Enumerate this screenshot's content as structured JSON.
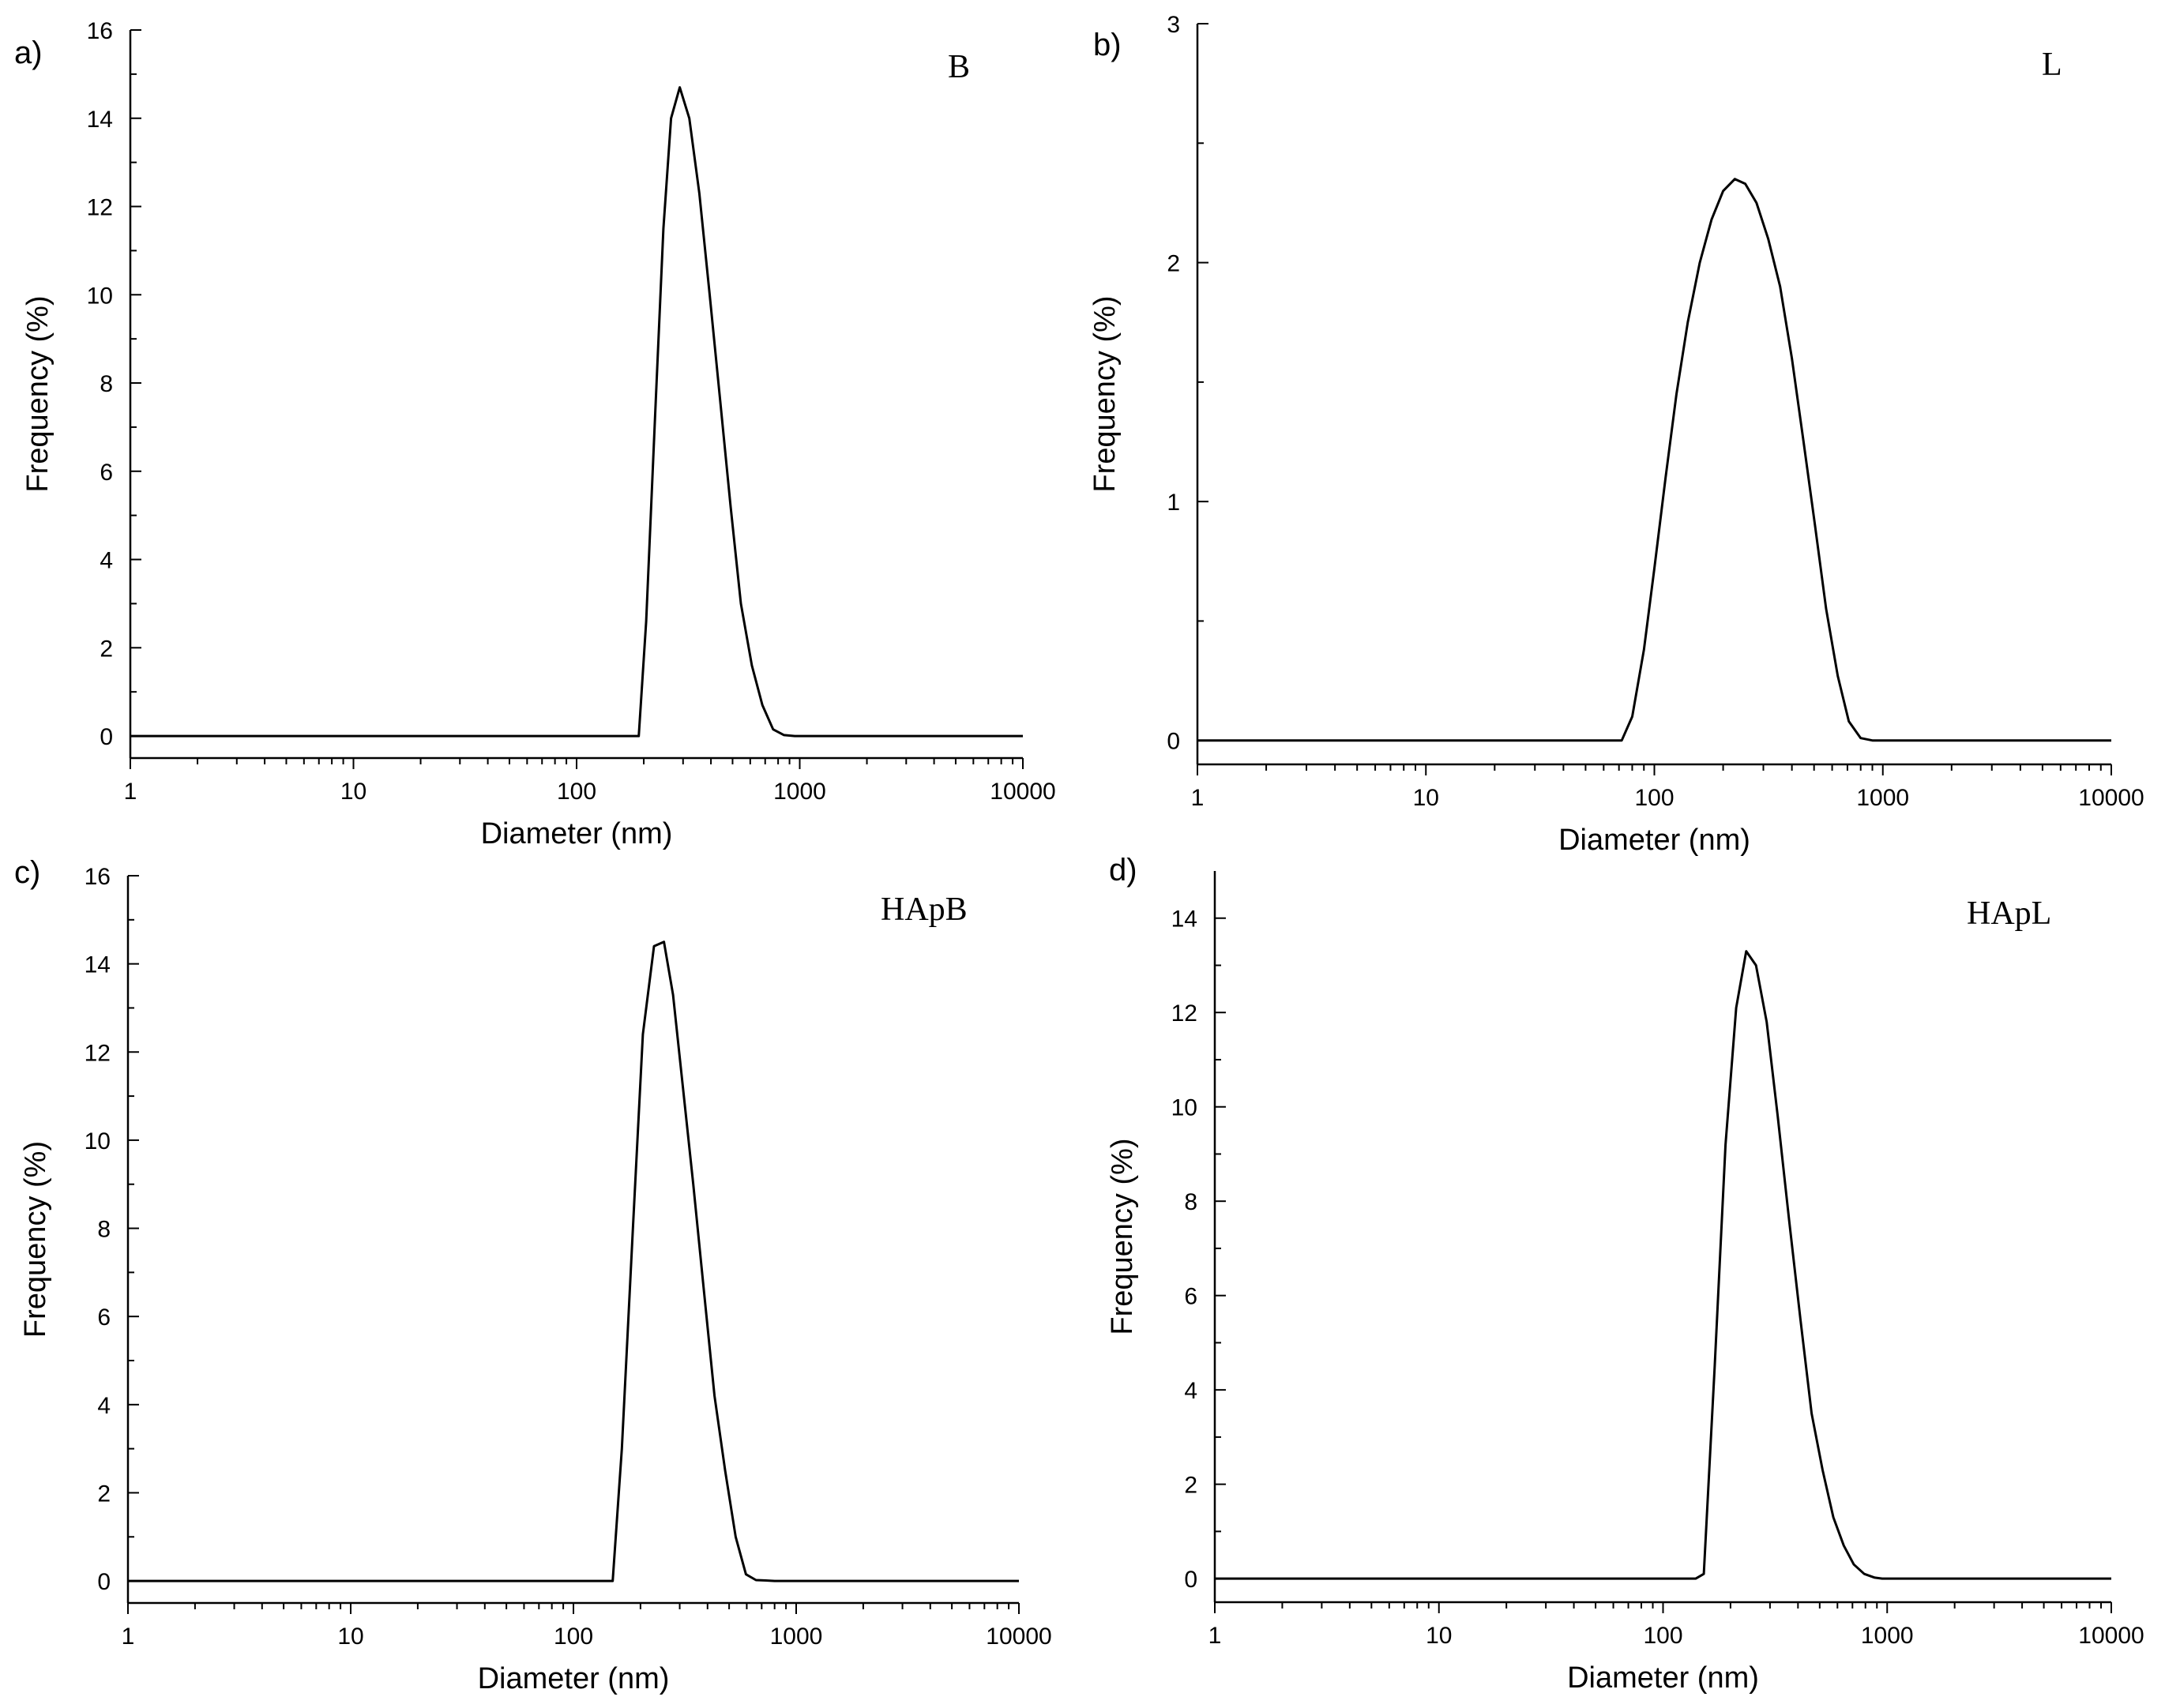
{
  "chart_data": [
    {
      "type": "line",
      "panel_label": "a)",
      "sample_label": "B",
      "xlabel": "Diameter (nm)",
      "ylabel": "Frequency (%)",
      "xscale": "log",
      "xlim": [
        1,
        10000
      ],
      "ylim": [
        -0.5,
        16
      ],
      "x_ticks": [
        1,
        10,
        100,
        1000,
        10000
      ],
      "x_tick_labels": [
        "1",
        "10",
        "100",
        "1000",
        "10000"
      ],
      "y_ticks": [
        0,
        2,
        4,
        6,
        8,
        10,
        12,
        14,
        16
      ],
      "y_tick_labels": [
        "0",
        "2",
        "4",
        "6",
        "8",
        "10",
        "12",
        "14",
        "16"
      ],
      "y_minor_step": 1,
      "x": [
        1,
        190,
        205,
        225,
        245,
        265,
        290,
        320,
        355,
        395,
        440,
        490,
        545,
        610,
        680,
        760,
        850,
        950,
        10000
      ],
      "y": [
        0,
        0,
        2.6,
        7.3,
        11.5,
        14.0,
        14.7,
        14.0,
        12.3,
        10.0,
        7.6,
        5.2,
        3.0,
        1.6,
        0.7,
        0.15,
        0.02,
        0,
        0
      ]
    },
    {
      "type": "line",
      "panel_label": "b)",
      "sample_label": "L",
      "xlabel": "Diameter (nm)",
      "ylabel": "Frequency (%)",
      "xscale": "log",
      "xlim": [
        1,
        10000
      ],
      "ylim": [
        -0.1,
        3
      ],
      "x_ticks": [
        1,
        10,
        100,
        1000,
        10000
      ],
      "x_tick_labels": [
        "1",
        "10",
        "100",
        "1000",
        "10000"
      ],
      "y_ticks": [
        0,
        1,
        2,
        3
      ],
      "y_tick_labels": [
        "0",
        "1",
        "2",
        "3"
      ],
      "y_minor_step": 0.5,
      "x": [
        1,
        72,
        80,
        90,
        100,
        112,
        125,
        140,
        158,
        178,
        200,
        225,
        250,
        280,
        315,
        355,
        400,
        450,
        505,
        565,
        635,
        710,
        800,
        900,
        10000
      ],
      "y": [
        0,
        0,
        0.1,
        0.38,
        0.72,
        1.1,
        1.45,
        1.75,
        2.0,
        2.18,
        2.3,
        2.35,
        2.33,
        2.25,
        2.1,
        1.9,
        1.6,
        1.25,
        0.9,
        0.55,
        0.27,
        0.08,
        0.01,
        0,
        0
      ]
    },
    {
      "type": "line",
      "panel_label": "c)",
      "sample_label": "HApB",
      "xlabel": "Diameter (nm)",
      "ylabel": "Frequency (%)",
      "xscale": "log",
      "xlim": [
        1,
        10000
      ],
      "ylim": [
        -0.5,
        16
      ],
      "x_ticks": [
        1,
        10,
        100,
        1000,
        10000
      ],
      "x_tick_labels": [
        "1",
        "10",
        "100",
        "1000",
        "10000"
      ],
      "y_ticks": [
        0,
        2,
        4,
        6,
        8,
        10,
        12,
        14,
        16
      ],
      "y_tick_labels": [
        "0",
        "2",
        "4",
        "6",
        "8",
        "10",
        "12",
        "14",
        "16"
      ],
      "y_minor_step": 1,
      "x": [
        1,
        150,
        165,
        185,
        205,
        230,
        255,
        280,
        310,
        345,
        385,
        430,
        480,
        535,
        595,
        660,
        730,
        800,
        880,
        10000
      ],
      "y": [
        0,
        0,
        3.0,
        8.0,
        12.4,
        14.4,
        14.5,
        13.3,
        11.2,
        9.0,
        6.6,
        4.2,
        2.5,
        1.0,
        0.15,
        0.02,
        0.01,
        0,
        0,
        0
      ]
    },
    {
      "type": "line",
      "panel_label": "d)",
      "sample_label": "HApL",
      "xlabel": "Diameter (nm)",
      "ylabel": "Frequency (%)",
      "xscale": "log",
      "xlim": [
        1,
        10000
      ],
      "ylim": [
        -0.5,
        15
      ],
      "x_ticks": [
        1,
        10,
        100,
        1000,
        10000
      ],
      "x_tick_labels": [
        "1",
        "10",
        "100",
        "1000",
        "10000"
      ],
      "y_ticks": [
        0,
        2,
        4,
        6,
        8,
        10,
        12,
        14
      ],
      "y_tick_labels": [
        "0",
        "2",
        "4",
        "6",
        "8",
        "10",
        "12",
        "14"
      ],
      "y_minor_step": 1,
      "x": [
        1,
        140,
        152,
        170,
        190,
        212,
        235,
        260,
        290,
        325,
        365,
        410,
        460,
        515,
        575,
        640,
        710,
        790,
        880,
        950,
        10000
      ],
      "y": [
        0,
        0,
        0.1,
        4.5,
        9.2,
        12.1,
        13.3,
        13.0,
        11.8,
        9.8,
        7.6,
        5.5,
        3.5,
        2.3,
        1.3,
        0.7,
        0.3,
        0.1,
        0.02,
        0,
        0
      ]
    }
  ]
}
